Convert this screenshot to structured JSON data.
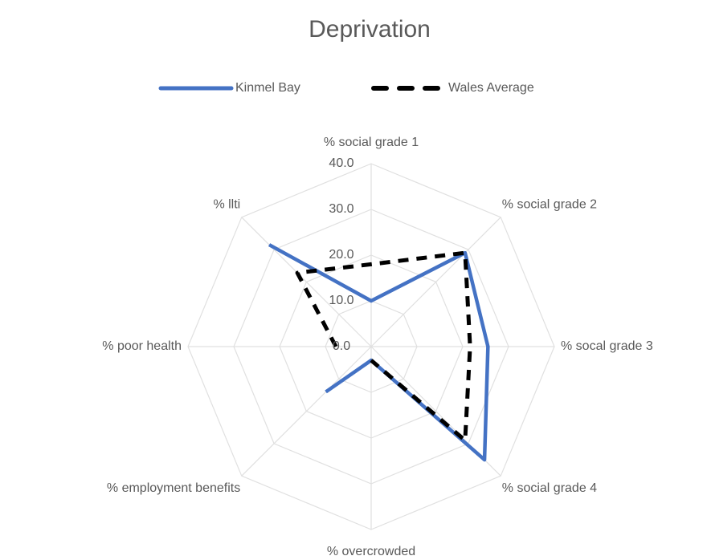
{
  "chart_data": {
    "type": "radar",
    "title": "Deprivation",
    "categories": [
      "% social grade 1",
      "% social grade 2",
      "% socal grade 3",
      "% social grade 4",
      "% overcrowded",
      "% employment benefits",
      "% poor health",
      "% llti"
    ],
    "series": [
      {
        "name": "Kinmel Bay",
        "color": "#4472c4",
        "dash": false,
        "values": [
          10,
          29,
          25.5,
          35,
          3,
          14,
          null,
          31.5
        ]
      },
      {
        "name": "Wales Average",
        "color": "#000000",
        "dash": true,
        "values": [
          18,
          29,
          21.6,
          29,
          3,
          null,
          7.7,
          22.8
        ]
      }
    ],
    "ylim": [
      0,
      40
    ],
    "yticks": [
      {
        "value": 0,
        "label": "0.0"
      },
      {
        "value": 10,
        "label": "10.0"
      },
      {
        "value": 20,
        "label": "20.0"
      },
      {
        "value": 30,
        "label": "30.0"
      },
      {
        "value": 40,
        "label": "40.0"
      }
    ],
    "grid": true,
    "legend": "top"
  }
}
